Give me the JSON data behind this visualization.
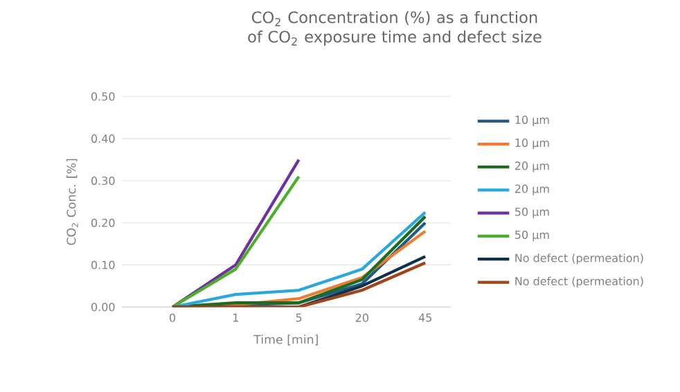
{
  "chart_data": {
    "type": "line",
    "title": "CO$_{2}$ Concentration (%) as a function of CO$_{2}$ exposure time and defect size",
    "xlabel": "Time [min]",
    "ylabel": "CO$_{2}$  Conc. [%]",
    "categories": [
      "0",
      "1",
      "5",
      "20",
      "45"
    ],
    "series": [
      {
        "name": "10 µm",
        "color": "#1f5d86",
        "values": [
          0,
          0.005,
          0.01,
          0.055,
          0.2
        ]
      },
      {
        "name": "10 µm",
        "color": "#ed7d31",
        "values": [
          0,
          0.005,
          0.02,
          0.07,
          0.18
        ]
      },
      {
        "name": "20 µm",
        "color": "#1e6b24",
        "values": [
          0,
          0.01,
          0.01,
          0.065,
          0.215
        ]
      },
      {
        "name": "20 µm",
        "color": "#2aa7dc",
        "values": [
          0,
          0.03,
          0.04,
          0.09,
          0.225
        ]
      },
      {
        "name": "50 µm",
        "color": "#7030a0",
        "values": [
          0,
          0.1,
          0.35,
          null,
          null
        ]
      },
      {
        "name": "50 µm",
        "color": "#4caf2a",
        "values": [
          0,
          0.09,
          0.31,
          null,
          null
        ]
      },
      {
        "name": "No defect (permeation)",
        "color": "#0f3047",
        "values": [
          0,
          0,
          0,
          0.05,
          0.12
        ]
      },
      {
        "name": "No defect (permeation)",
        "color": "#a0441a",
        "values": [
          0,
          0,
          0,
          0.04,
          0.105
        ]
      }
    ],
    "ylim": [
      0,
      0.5
    ],
    "yticks": [
      {
        "value": 0,
        "label": "0.00"
      },
      {
        "value": 0.1,
        "label": "0.10"
      },
      {
        "value": 0.2,
        "label": "0.20"
      },
      {
        "value": 0.3,
        "label": "0.30"
      },
      {
        "value": 0.4,
        "label": "0.40"
      },
      {
        "value": 0.5,
        "label": "0.50"
      }
    ],
    "grid": "y",
    "legend": "right",
    "marker": "none",
    "line_style": "solid"
  }
}
